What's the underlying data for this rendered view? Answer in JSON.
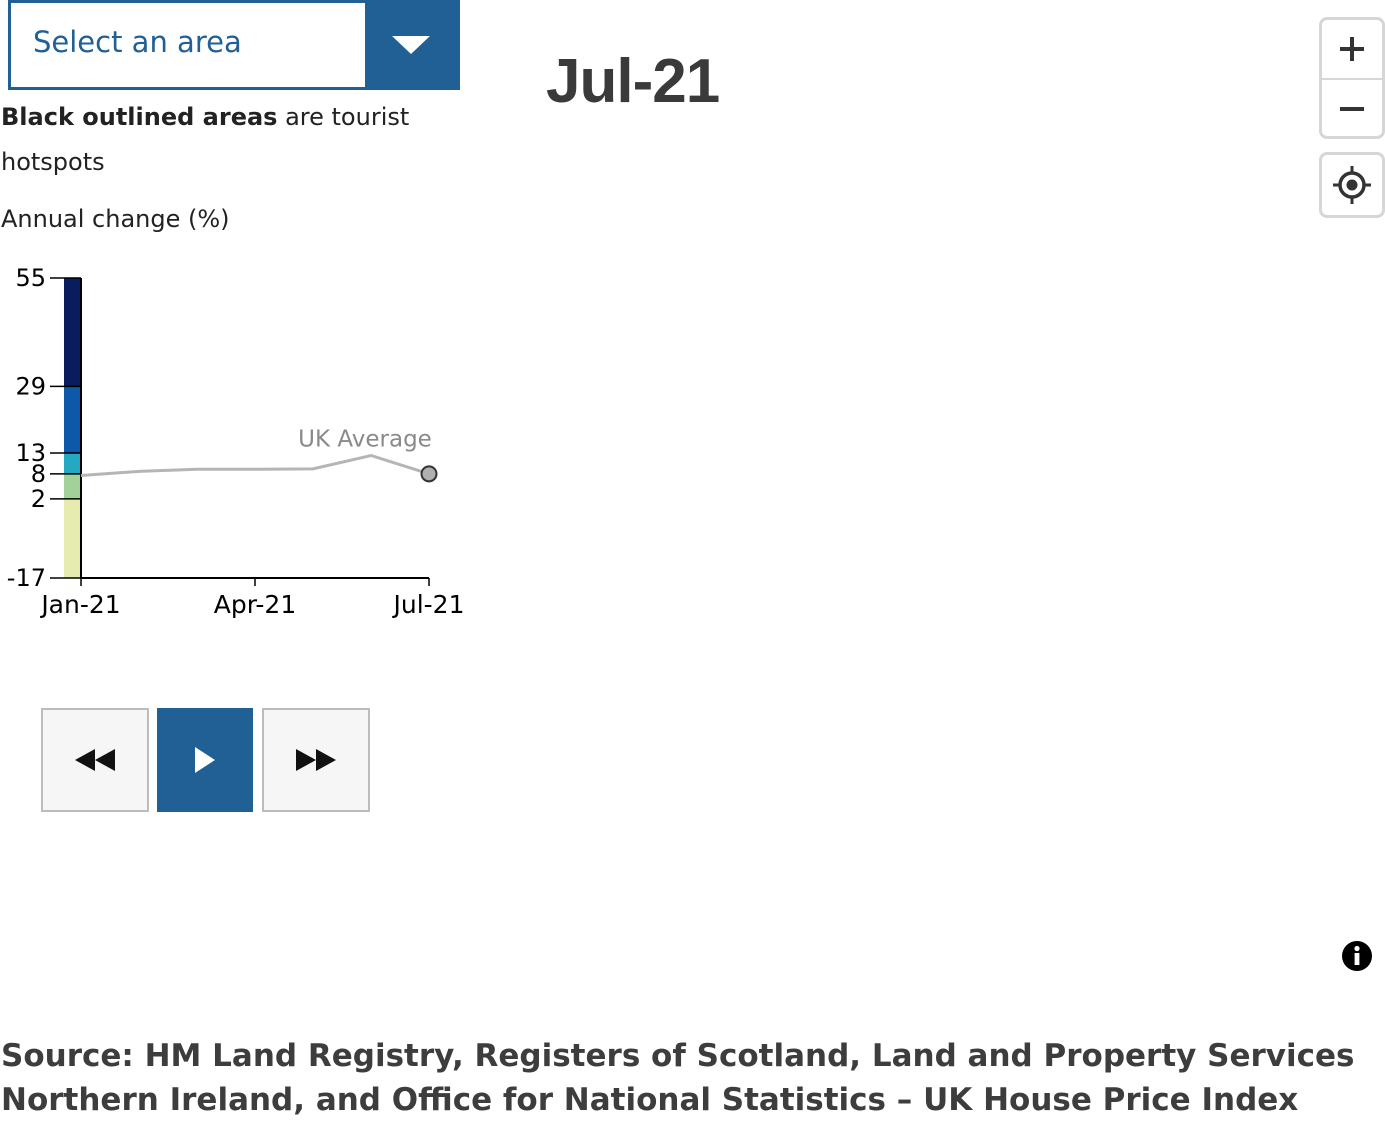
{
  "area_select": {
    "placeholder": "Select an area"
  },
  "note": {
    "bold": "Black outlined areas",
    "rest": " are tourist hotspots"
  },
  "legend_title": "Annual change (%)",
  "current_period": "Jul-21",
  "chart_data": {
    "type": "line",
    "title": "",
    "ylabel": "Annual change (%)",
    "xlabel": "",
    "x": [
      "Jan-21",
      "Feb-21",
      "Mar-21",
      "Apr-21",
      "May-21",
      "Jun-21",
      "Jul-21"
    ],
    "x_ticks": [
      "Jan-21",
      "Apr-21",
      "Jul-21"
    ],
    "series": [
      {
        "name": "UK Average",
        "values": [
          7.6,
          8.6,
          9.1,
          9.1,
          9.2,
          12.4,
          8.0
        ]
      }
    ],
    "highlight_point": {
      "x": "Jul-21",
      "y": 8.0
    },
    "y_ticks": [
      55,
      29,
      13,
      8,
      2,
      -17
    ],
    "ylim": [
      -17,
      55
    ],
    "color_scale": {
      "breaks": [
        -17,
        2,
        8,
        13,
        29,
        55
      ],
      "colors": [
        "#e6ecb0",
        "#a2d29a",
        "#25a8c2",
        "#0d58a8",
        "#0b1c5e"
      ]
    },
    "line_color": "#b5b5b5"
  },
  "playback": {
    "back": "rewind-icon",
    "play": "play-icon",
    "forward": "fast-forward-icon"
  },
  "map_controls": {
    "zoom_in": "plus-icon",
    "zoom_out": "minus-icon",
    "locate": "locate-icon"
  },
  "source": "Source: HM Land Registry, Registers of Scotland, Land and Property Services Northern Ireland, and Office for National Statistics – UK House Price Index"
}
